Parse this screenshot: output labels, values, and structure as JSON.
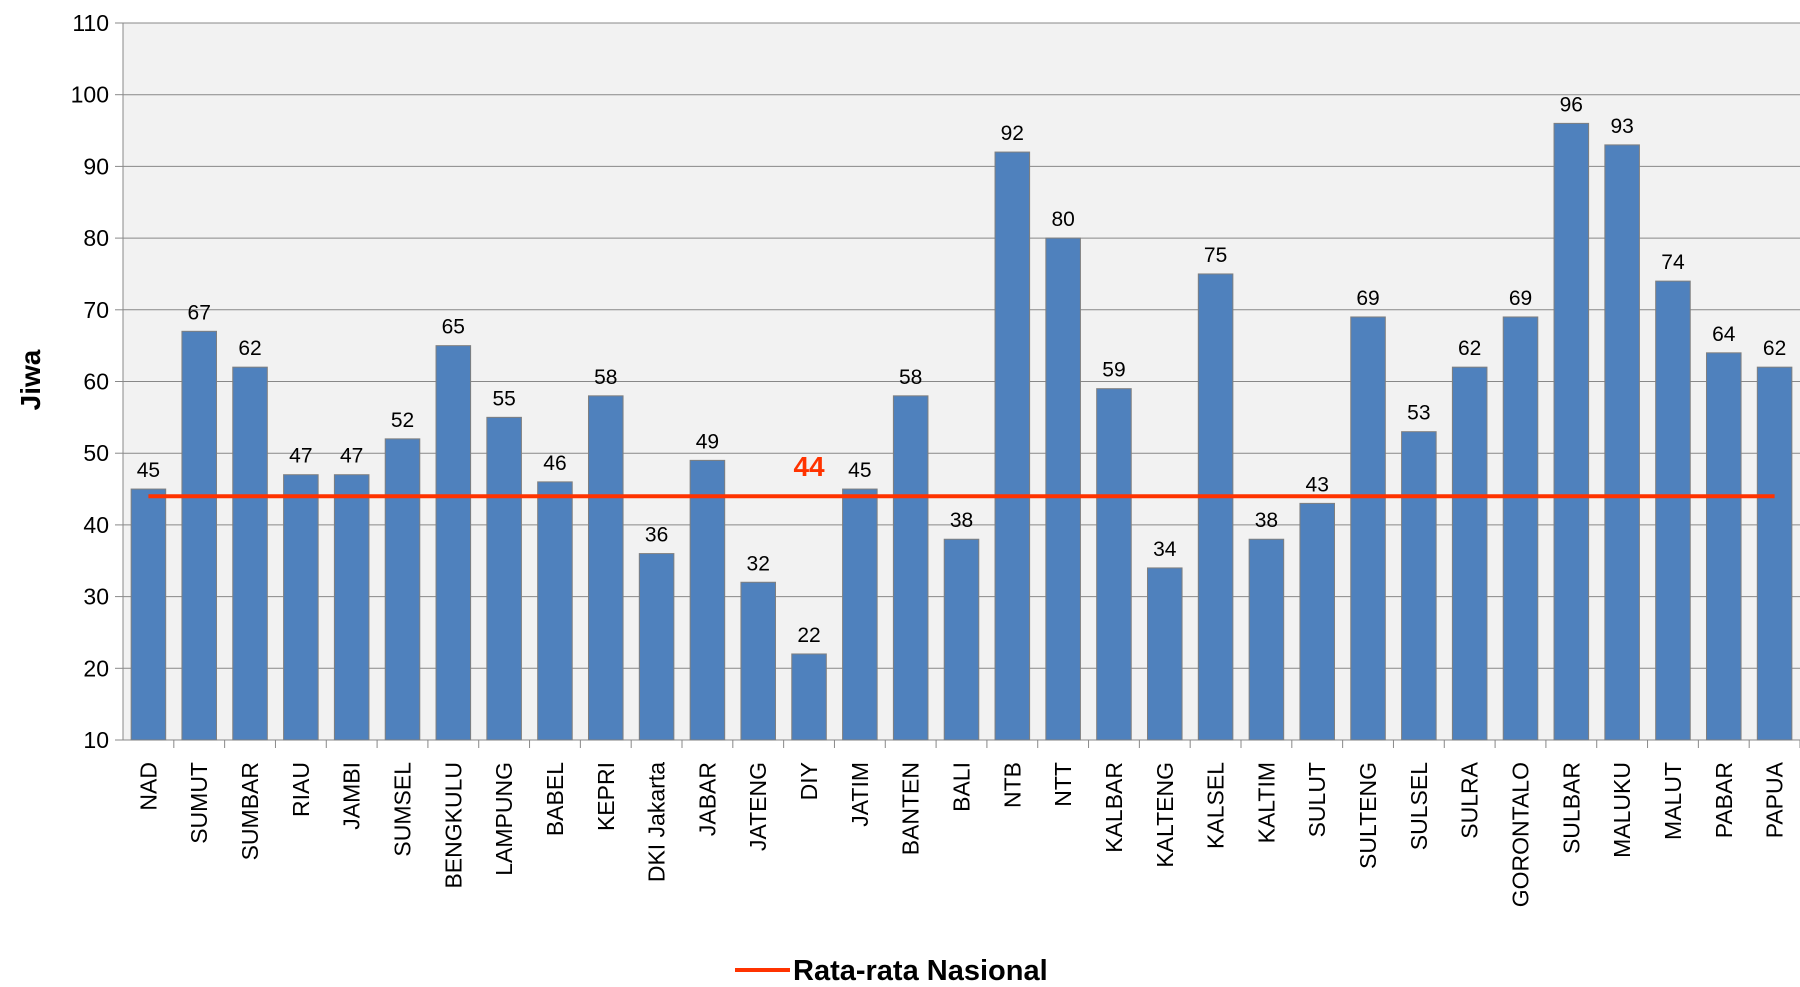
{
  "chart_data": {
    "type": "bar",
    "y_label": "Jiwa",
    "categories": [
      "NAD",
      "SUMUT",
      "SUMBAR",
      "RIAU",
      "JAMBI",
      "SUMSEL",
      "BENGKULU",
      "LAMPUNG",
      "BABEL",
      "KEPRI",
      "DKI Jakarta",
      "JABAR",
      "JATENG",
      "DIY",
      "JATIM",
      "BANTEN",
      "BALI",
      "NTB",
      "NTT",
      "KALBAR",
      "KALTENG",
      "KALSEL",
      "KALTIM",
      "SULUT",
      "SULTENG",
      "SULSEL",
      "SULRA",
      "GORONTALO",
      "SULBAR",
      "MALUKU",
      "MALUT",
      "PABAR",
      "PAPUA"
    ],
    "values": [
      45,
      67,
      62,
      47,
      47,
      52,
      65,
      55,
      46,
      58,
      36,
      49,
      32,
      22,
      45,
      58,
      38,
      92,
      80,
      59,
      34,
      75,
      38,
      43,
      69,
      53,
      62,
      69,
      96,
      93,
      74,
      64,
      62
    ],
    "color": "#4f81bd",
    "ylim": [
      10,
      110
    ],
    "yticks": [
      10,
      20,
      30,
      40,
      50,
      60,
      70,
      80,
      90,
      100,
      110
    ],
    "grid": true,
    "reference_line": {
      "name": "Rata-rata Nasional",
      "value": 44,
      "color": "#ff3300"
    },
    "legend": "bottom"
  }
}
